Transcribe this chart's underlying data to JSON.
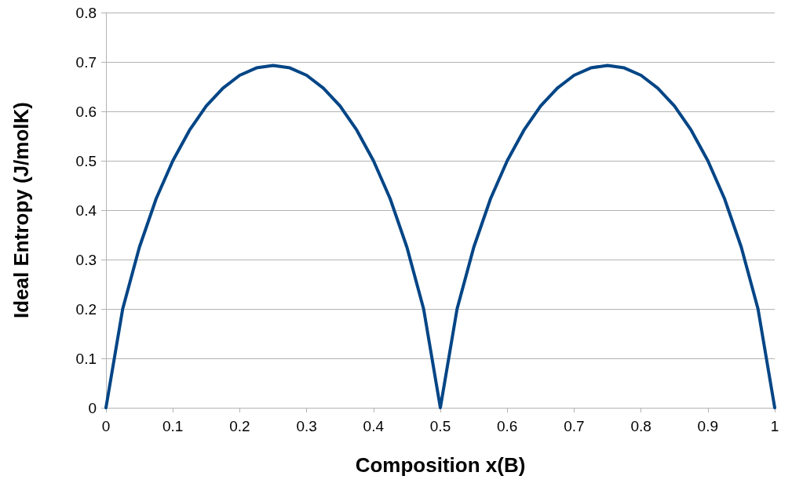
{
  "chart_data": {
    "type": "line",
    "xlabel": "Composition x(B)",
    "ylabel": "Ideal Entropy (J/molK)",
    "x": [
      0,
      0.025,
      0.05,
      0.075,
      0.1,
      0.125,
      0.15,
      0.175,
      0.2,
      0.225,
      0.25,
      0.275,
      0.3,
      0.325,
      0.35,
      0.375,
      0.4,
      0.425,
      0.45,
      0.475,
      0.5,
      0.525,
      0.55,
      0.575,
      0.6,
      0.625,
      0.65,
      0.675,
      0.7,
      0.725,
      0.75,
      0.775,
      0.8,
      0.825,
      0.85,
      0.875,
      0.9,
      0.925,
      0.95,
      0.975,
      1
    ],
    "series": [
      {
        "color": "#004586",
        "values": [
          0,
          0.2,
          0.325,
          0.423,
          0.5,
          0.562,
          0.611,
          0.647,
          0.673,
          0.688,
          0.693,
          0.688,
          0.673,
          0.647,
          0.611,
          0.562,
          0.5,
          0.423,
          0.325,
          0.2,
          0,
          0.2,
          0.325,
          0.423,
          0.5,
          0.562,
          0.611,
          0.647,
          0.673,
          0.688,
          0.693,
          0.688,
          0.673,
          0.647,
          0.611,
          0.562,
          0.5,
          0.423,
          0.325,
          0.2,
          0
        ]
      }
    ],
    "xlim": [
      0,
      1
    ],
    "xticks": [
      0,
      0.1,
      0.2,
      0.3,
      0.4,
      0.5,
      0.6,
      0.7,
      0.8,
      0.9,
      1
    ],
    "ylim": [
      0,
      0.8
    ],
    "yticks": [
      0,
      0.1,
      0.2,
      0.3,
      0.4,
      0.5,
      0.6,
      0.7,
      0.8
    ],
    "grid": "y",
    "marker": "none",
    "line_style": "solid"
  }
}
